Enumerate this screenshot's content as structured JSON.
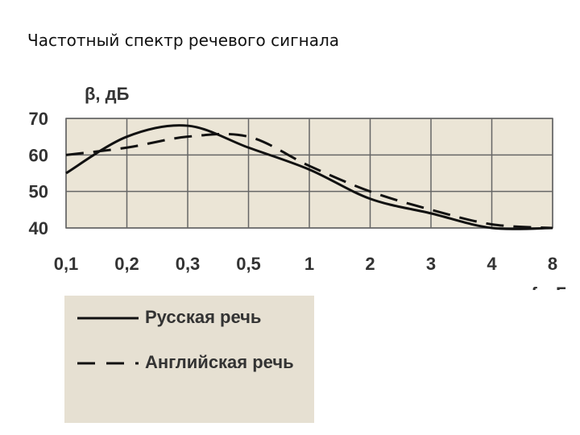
{
  "chart_data": {
    "type": "line",
    "title": "Частотный спектр речевого сигнала",
    "y_label": "β, дБ",
    "x_label": "f, кГц",
    "categories": [
      "0,1",
      "0,2",
      "0,3",
      "0,5",
      "1",
      "2",
      "3",
      "4",
      "8"
    ],
    "series": [
      {
        "name": "Русская речь",
        "color": "#111111",
        "dash": "solid",
        "values": [
          55,
          65,
          68,
          62,
          56,
          48,
          44,
          40,
          40
        ]
      },
      {
        "name": "Английская речь",
        "color": "#111111",
        "dash": "dashed",
        "values": [
          60,
          62,
          65,
          65,
          57,
          50,
          45,
          41,
          40
        ]
      }
    ],
    "ylim": [
      40,
      70
    ],
    "yticks": [
      40,
      50,
      60,
      70
    ],
    "grid": true
  }
}
